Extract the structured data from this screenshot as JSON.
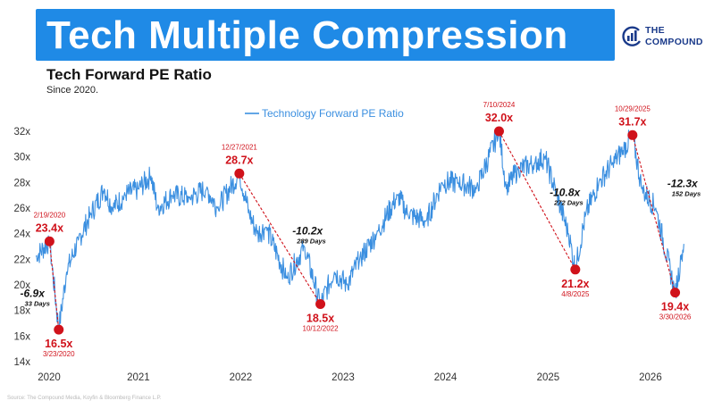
{
  "header": {
    "banner_title": "Tech Multiple Compression",
    "brand_name_line1": "THE",
    "brand_name_line2": "COMPOUND",
    "brand_color": "#1a3a8a",
    "banner_color": "#1f8ae6",
    "brand_icon": "compound-logo-icon"
  },
  "source_note": "Source: The Compound Media, Koyfin & Bloomberg Finance L.P.",
  "chart_data": {
    "type": "line",
    "title": "Tech Forward PE Ratio",
    "subtitle": "Since 2020.",
    "legend": {
      "label": "Technology Forward PE Ratio",
      "placement": "top-center"
    },
    "line_color": "#3b8fe0",
    "annotation_color": "#d0121b",
    "x_domain": [
      "2020-01-01",
      "2026-05-15"
    ],
    "x_ticks": [
      "2020",
      "2021",
      "2022",
      "2023",
      "2024",
      "2025",
      "2026"
    ],
    "y_ticks": [
      "14x",
      "16x",
      "18x",
      "20x",
      "22x",
      "24x",
      "26x",
      "28x",
      "30x",
      "32x"
    ],
    "ylim": [
      14,
      32
    ],
    "grid": false,
    "series": [
      {
        "name": "Technology Forward PE Ratio",
        "points": [
          [
            "2020-01-02",
            22.2
          ],
          [
            "2020-02-19",
            23.4
          ],
          [
            "2020-03-23",
            16.5
          ],
          [
            "2020-04-20",
            21.0
          ],
          [
            "2020-06-01",
            23.5
          ],
          [
            "2020-07-15",
            25.5
          ],
          [
            "2020-09-01",
            27.5
          ],
          [
            "2020-10-01",
            26.0
          ],
          [
            "2020-11-15",
            27.0
          ],
          [
            "2021-01-01",
            27.5
          ],
          [
            "2021-02-15",
            28.5
          ],
          [
            "2021-03-10",
            26.0
          ],
          [
            "2021-05-01",
            27.0
          ],
          [
            "2021-07-01",
            26.8
          ],
          [
            "2021-09-01",
            27.5
          ],
          [
            "2021-10-10",
            26.0
          ],
          [
            "2021-12-27",
            28.7
          ],
          [
            "2022-02-01",
            25.5
          ],
          [
            "2022-03-01",
            24.0
          ],
          [
            "2022-04-01",
            24.5
          ],
          [
            "2022-06-15",
            20.5
          ],
          [
            "2022-08-15",
            23.0
          ],
          [
            "2022-10-12",
            18.5
          ],
          [
            "2022-12-01",
            21.0
          ],
          [
            "2023-01-15",
            20.0
          ],
          [
            "2023-03-01",
            22.0
          ],
          [
            "2023-05-01",
            24.0
          ],
          [
            "2023-07-15",
            27.0
          ],
          [
            "2023-08-20",
            25.5
          ],
          [
            "2023-10-25",
            25.0
          ],
          [
            "2023-12-20",
            28.0
          ],
          [
            "2024-02-15",
            28.0
          ],
          [
            "2024-04-20",
            27.5
          ],
          [
            "2024-07-10",
            32.0
          ],
          [
            "2024-08-05",
            27.5
          ],
          [
            "2024-09-15",
            29.0
          ],
          [
            "2024-11-15",
            29.5
          ],
          [
            "2024-12-20",
            30.0
          ],
          [
            "2025-02-01",
            27.0
          ],
          [
            "2025-03-15",
            24.0
          ],
          [
            "2025-04-08",
            21.2
          ],
          [
            "2025-05-15",
            25.5
          ],
          [
            "2025-07-01",
            28.0
          ],
          [
            "2025-08-20",
            29.5
          ],
          [
            "2025-09-25",
            30.5
          ],
          [
            "2025-10-29",
            31.7
          ],
          [
            "2025-12-01",
            27.5
          ],
          [
            "2026-01-20",
            26.0
          ],
          [
            "2026-03-30",
            19.4
          ],
          [
            "2026-04-20",
            22.0
          ],
          [
            "2026-04-30",
            23.2
          ]
        ]
      }
    ],
    "annotations": [
      {
        "date_label": "2/19/2020",
        "value_label": "23.4x",
        "x": "2020-02-19",
        "y": 23.4,
        "role": "peak"
      },
      {
        "date_label": "3/23/2020",
        "value_label": "16.5x",
        "x": "2020-03-23",
        "y": 16.5,
        "role": "trough"
      },
      {
        "date_label": "12/27/2021",
        "value_label": "28.7x",
        "x": "2021-12-27",
        "y": 28.7,
        "role": "peak"
      },
      {
        "date_label": "10/12/2022",
        "value_label": "18.5x",
        "x": "2022-10-12",
        "y": 18.5,
        "role": "trough"
      },
      {
        "date_label": "7/10/2024",
        "value_label": "32.0x",
        "x": "2024-07-10",
        "y": 32.0,
        "role": "peak"
      },
      {
        "date_label": "4/8/2025",
        "value_label": "21.2x",
        "x": "2025-04-08",
        "y": 21.2,
        "role": "trough"
      },
      {
        "date_label": "10/29/2025",
        "value_label": "31.7x",
        "x": "2025-10-29",
        "y": 31.7,
        "role": "peak"
      },
      {
        "date_label": "3/30/2026",
        "value_label": "19.4x",
        "x": "2026-03-30",
        "y": 19.4,
        "role": "trough"
      }
    ],
    "drawdowns": [
      {
        "from": "2020-02-19",
        "to": "2020-03-23",
        "change": "-6.9x",
        "duration": "33 Days"
      },
      {
        "from": "2021-12-27",
        "to": "2022-10-12",
        "change": "-10.2x",
        "duration": "289 Days"
      },
      {
        "from": "2024-07-10",
        "to": "2025-04-08",
        "change": "-10.8x",
        "duration": "272 Days"
      },
      {
        "from": "2025-10-29",
        "to": "2026-03-30",
        "change": "-12.3x",
        "duration": "152 Days"
      }
    ]
  }
}
